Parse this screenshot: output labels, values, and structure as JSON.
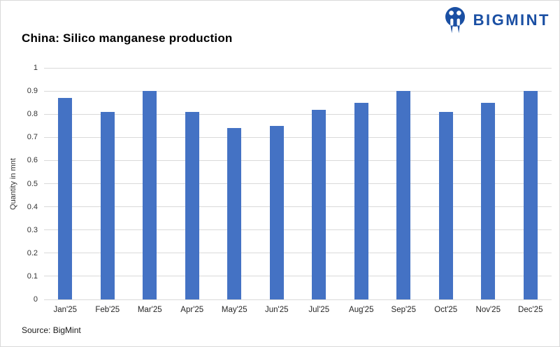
{
  "header": {
    "logo": {
      "text": "BIGMINT",
      "color": "#1a4fa3",
      "icon": "bigmint-logo-icon"
    }
  },
  "chart_data": {
    "type": "bar",
    "title": "China: Silico manganese production",
    "categories": [
      "Jan'25",
      "Feb'25",
      "Mar'25",
      "Apr'25",
      "May'25",
      "Jun'25",
      "Jul'25",
      "Aug'25",
      "Sep'25",
      "Oct'25",
      "Nov'25",
      "Dec'25"
    ],
    "values": [
      0.87,
      0.81,
      0.9,
      0.81,
      0.74,
      0.75,
      0.82,
      0.85,
      0.9,
      0.81,
      0.85,
      0.9
    ],
    "xlabel": "",
    "ylabel": "Quantity in mnt",
    "ylim": [
      0,
      1
    ],
    "ytick_step": 0.1,
    "grid": true,
    "legend": "none",
    "bar_color": "#4472c4",
    "gridline_color": "#d9d9d9",
    "axis_text_color": "#333333"
  },
  "footer": {
    "source": "Source: BigMint"
  }
}
